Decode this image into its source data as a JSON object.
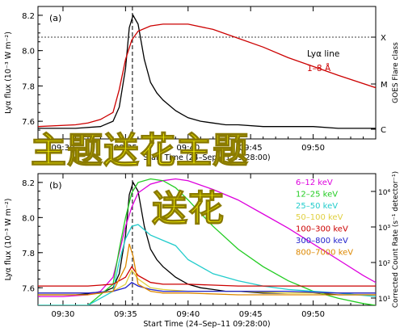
{
  "chart_data": [
    {
      "type": "line",
      "panel": "(a)",
      "ylabel": "Lyα flux (10⁻³ W m⁻²)",
      "ylabel_right": "GOES Flare class",
      "xlabel": "Start Time (24–Sep–11 09:28:00)",
      "ylim": [
        7.5,
        8.25
      ],
      "xlim": [
        "09:28",
        "09:55"
      ],
      "yticks": [
        "7.6",
        "7.8",
        "8.0",
        "8.2"
      ],
      "xticks": [
        "09:30",
        "09:35",
        "09:40",
        "09:45",
        "09:50"
      ],
      "right_ticks": [
        "X",
        "M",
        "C"
      ],
      "legend_position": "top-right",
      "dashed_vline_time": "09:35.5",
      "series": [
        {
          "name": "Lyα line",
          "color": "#000000",
          "x": [
            28,
            31,
            33,
            34,
            34.5,
            35,
            35.3,
            35.6,
            36,
            36.5,
            37,
            37.5,
            38,
            38.5,
            39,
            39.5,
            40,
            41,
            42,
            43,
            44,
            46,
            48,
            50,
            52,
            55
          ],
          "y": [
            7.56,
            7.56,
            7.57,
            7.6,
            7.68,
            7.9,
            8.13,
            8.2,
            8.15,
            7.95,
            7.82,
            7.76,
            7.72,
            7.69,
            7.66,
            7.64,
            7.62,
            7.6,
            7.59,
            7.58,
            7.58,
            7.57,
            7.57,
            7.57,
            7.56,
            7.56
          ]
        },
        {
          "name": "1–8 Å",
          "color": "#cc0000",
          "x": [
            28,
            31,
            32,
            33,
            34,
            34.5,
            35,
            35.5,
            36,
            37,
            38,
            39,
            40,
            42,
            44,
            46,
            48,
            50,
            52,
            55
          ],
          "y": [
            7.57,
            7.58,
            7.59,
            7.61,
            7.65,
            7.78,
            7.95,
            8.06,
            8.11,
            8.14,
            8.15,
            8.15,
            8.15,
            8.12,
            8.07,
            8.02,
            7.96,
            7.91,
            7.86,
            7.79
          ]
        }
      ]
    },
    {
      "type": "line",
      "panel": "(b)",
      "ylabel": "Lyα flux (10⁻³ W m⁻²)",
      "ylabel_right": "Corrected Count Rate (s⁻¹ detector⁻¹)",
      "xlabel": "Start Time (24–Sep–11 09:28:00)",
      "ylim": [
        7.5,
        8.25
      ],
      "xlim": [
        "09:28",
        "09:55"
      ],
      "yticks": [
        "7.6",
        "7.8",
        "8.0",
        "8.2"
      ],
      "xticks": [
        "09:30",
        "09:35",
        "09:40",
        "09:45",
        "09:50"
      ],
      "right_ticks": [
        "10⁴",
        "10³",
        "10²",
        "10¹"
      ],
      "legend_position": "top-right",
      "dashed_vline_time": "09:35.5",
      "series": [
        {
          "name": "",
          "color": "#000000",
          "x": [
            28,
            31,
            33,
            34,
            34.5,
            35,
            35.3,
            35.6,
            36,
            36.5,
            37,
            37.5,
            38,
            38.5,
            39,
            39.5,
            40,
            41,
            42,
            43,
            44,
            46,
            48,
            50,
            52,
            55
          ],
          "y": [
            7.56,
            7.56,
            7.57,
            7.6,
            7.68,
            7.9,
            8.13,
            8.2,
            8.15,
            7.95,
            7.82,
            7.76,
            7.72,
            7.69,
            7.66,
            7.64,
            7.62,
            7.6,
            7.59,
            7.58,
            7.58,
            7.57,
            7.57,
            7.57,
            7.56,
            7.56
          ]
        },
        {
          "name": "6–12 keV",
          "color": "#dd00dd",
          "x": [
            28,
            30,
            32,
            33,
            34,
            34.5,
            35,
            35.5,
            36,
            37,
            38,
            39,
            40,
            42,
            44,
            46,
            48,
            50,
            52,
            54,
            55
          ],
          "y": [
            7.55,
            7.55,
            7.56,
            7.58,
            7.66,
            7.8,
            7.95,
            8.06,
            8.14,
            8.19,
            8.21,
            8.22,
            8.21,
            8.16,
            8.1,
            8.02,
            7.94,
            7.85,
            7.76,
            7.67,
            7.63
          ]
        },
        {
          "name": "12–25 keV",
          "color": "#22cc22",
          "x": [
            28,
            32,
            34,
            34.5,
            35,
            35.5,
            36,
            37,
            38,
            39,
            40,
            42,
            44,
            46,
            48,
            50,
            52,
            54,
            55
          ],
          "y": [
            7.5,
            7.5,
            7.62,
            7.82,
            8.0,
            8.14,
            8.2,
            8.22,
            8.21,
            8.17,
            8.1,
            7.95,
            7.82,
            7.72,
            7.64,
            7.58,
            7.54,
            7.51,
            7.5
          ]
        },
        {
          "name": "25–50 keV",
          "color": "#22cccc",
          "x": [
            28,
            32,
            34,
            34.5,
            35,
            35.5,
            36,
            36.5,
            37,
            38,
            39,
            40,
            41,
            42,
            43,
            44,
            46,
            48,
            50,
            52,
            55
          ],
          "y": [
            7.5,
            7.5,
            7.58,
            7.75,
            7.88,
            7.95,
            7.96,
            7.93,
            7.9,
            7.87,
            7.84,
            7.76,
            7.72,
            7.68,
            7.66,
            7.64,
            7.61,
            7.59,
            7.58,
            7.57,
            7.55
          ]
        },
        {
          "name": "50–100 keV",
          "color": "#e0d040",
          "x": [
            28,
            32,
            34,
            35,
            35.5,
            36,
            37,
            38,
            40,
            44,
            48,
            52,
            55
          ],
          "y": [
            7.57,
            7.57,
            7.58,
            7.62,
            7.7,
            7.65,
            7.6,
            7.59,
            7.58,
            7.58,
            7.57,
            7.57,
            7.57
          ]
        },
        {
          "name": "100–300 keV",
          "color": "#cc0000",
          "x": [
            28,
            32,
            34,
            35,
            35.5,
            36,
            37,
            38,
            40,
            44,
            48,
            52,
            55
          ],
          "y": [
            7.61,
            7.61,
            7.62,
            7.66,
            7.72,
            7.67,
            7.63,
            7.62,
            7.62,
            7.61,
            7.61,
            7.61,
            7.61
          ]
        },
        {
          "name": "300–800 keV",
          "color": "#2222cc",
          "x": [
            28,
            32,
            34,
            35,
            35.5,
            36,
            37,
            38,
            40,
            44,
            48,
            52,
            55
          ],
          "y": [
            7.57,
            7.57,
            7.58,
            7.6,
            7.63,
            7.61,
            7.59,
            7.58,
            7.58,
            7.58,
            7.58,
            7.57,
            7.57
          ]
        },
        {
          "name": "800–7000 keV",
          "color": "#dd8800",
          "x": [
            28,
            32,
            34,
            35,
            35.3,
            35.6,
            36,
            37,
            38,
            40,
            44,
            48,
            52,
            55
          ],
          "y": [
            7.56,
            7.56,
            7.58,
            7.72,
            7.85,
            7.78,
            7.62,
            7.58,
            7.57,
            7.57,
            7.56,
            7.56,
            7.56,
            7.56
          ]
        }
      ]
    }
  ],
  "overlay": {
    "line1": "主题送花主题",
    "line2": "送花"
  }
}
